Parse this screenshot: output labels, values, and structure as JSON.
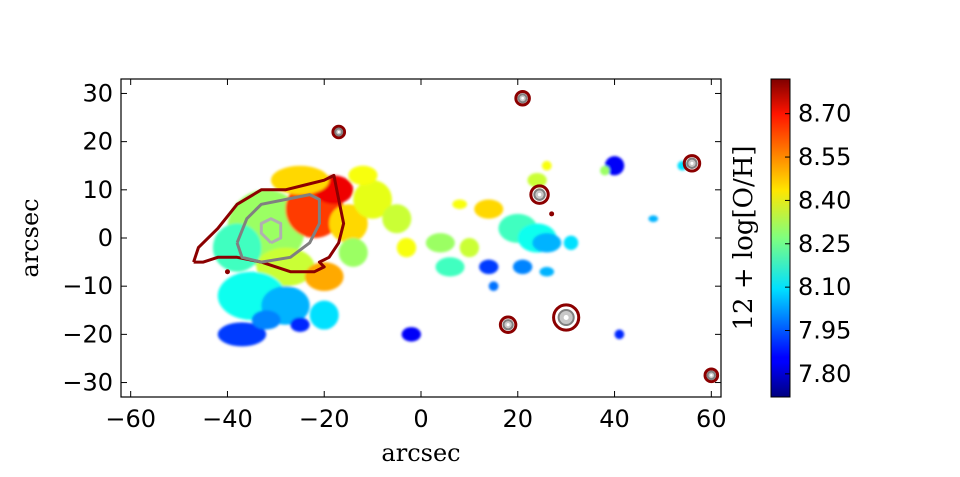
{
  "chart_data": {
    "type": "heatmap",
    "title": "",
    "xlabel": "arcsec",
    "ylabel": "arcsec",
    "xlim": [
      -62,
      62
    ],
    "ylim": [
      -33,
      33
    ],
    "xticks": [
      "−60",
      "−40",
      "−20",
      "0",
      "20",
      "40",
      "60"
    ],
    "xtick_values": [
      -60,
      -40,
      -20,
      0,
      20,
      40,
      60
    ],
    "yticks": [
      "30",
      "20",
      "10",
      "0",
      "−10",
      "−20",
      "−30"
    ],
    "ytick_values": [
      30,
      20,
      10,
      0,
      -10,
      -20,
      -30
    ],
    "grid": false,
    "colormap": "jet",
    "colorbar": {
      "label": "12 + log[O/H]",
      "vmin": 7.72,
      "vmax": 8.82,
      "ticks": [
        "8.70",
        "8.55",
        "8.40",
        "8.25",
        "8.10",
        "7.95",
        "7.80"
      ],
      "tick_values": [
        8.7,
        8.55,
        8.4,
        8.25,
        8.1,
        7.95,
        7.8
      ]
    },
    "regions": [
      {
        "x": -32,
        "y": 2,
        "rx": 8,
        "ry": 8,
        "value": 8.3
      },
      {
        "x": -22,
        "y": 6,
        "rx": 6,
        "ry": 6,
        "value": 8.62
      },
      {
        "x": -18,
        "y": 10,
        "rx": 4,
        "ry": 3,
        "value": 8.7
      },
      {
        "x": -25,
        "y": 12,
        "rx": 6,
        "ry": 3,
        "value": 8.45
      },
      {
        "x": -38,
        "y": -2,
        "rx": 5,
        "ry": 5,
        "value": 8.2
      },
      {
        "x": -28,
        "y": -6,
        "rx": 6,
        "ry": 4,
        "value": 8.35
      },
      {
        "x": -20,
        "y": -8,
        "rx": 4,
        "ry": 3,
        "value": 8.5
      },
      {
        "x": -15,
        "y": 3,
        "rx": 4,
        "ry": 4,
        "value": 8.45
      },
      {
        "x": -10,
        "y": 8,
        "rx": 4,
        "ry": 4,
        "value": 8.38
      },
      {
        "x": -12,
        "y": 13,
        "rx": 3,
        "ry": 2,
        "value": 8.4
      },
      {
        "x": -14,
        "y": -3,
        "rx": 3,
        "ry": 3,
        "value": 8.3
      },
      {
        "x": -35,
        "y": -12,
        "rx": 7,
        "ry": 5,
        "value": 8.15
      },
      {
        "x": -28,
        "y": -14,
        "rx": 5,
        "ry": 4,
        "value": 8.05
      },
      {
        "x": -37,
        "y": -20,
        "rx": 5,
        "ry": 2.5,
        "value": 7.92
      },
      {
        "x": -32,
        "y": -17,
        "rx": 3,
        "ry": 2,
        "value": 8.0
      },
      {
        "x": -20,
        "y": -16,
        "rx": 3,
        "ry": 3,
        "value": 8.1
      },
      {
        "x": -25,
        "y": -18,
        "rx": 2,
        "ry": 1.5,
        "value": 7.9
      },
      {
        "x": -5,
        "y": 3,
        "rx": 2,
        "ry": 2,
        "value": 8.3
      },
      {
        "x": -5,
        "y": 4,
        "rx": 3,
        "ry": 3,
        "value": 8.35
      },
      {
        "x": -3,
        "y": -2,
        "rx": 2,
        "ry": 2,
        "value": 8.4
      },
      {
        "x": -2,
        "y": -20,
        "rx": 2,
        "ry": 1.5,
        "value": 7.85
      },
      {
        "x": 4,
        "y": -1,
        "rx": 3,
        "ry": 2,
        "value": 8.3
      },
      {
        "x": 6,
        "y": -6,
        "rx": 3,
        "ry": 2,
        "value": 8.2
      },
      {
        "x": 10,
        "y": -2,
        "rx": 2,
        "ry": 2,
        "value": 8.35
      },
      {
        "x": 8,
        "y": 7,
        "rx": 1.5,
        "ry": 1,
        "value": 8.4
      },
      {
        "x": 14,
        "y": 6,
        "rx": 3,
        "ry": 2,
        "value": 8.45
      },
      {
        "x": 14,
        "y": -6,
        "rx": 2,
        "ry": 1.5,
        "value": 7.92
      },
      {
        "x": 15,
        "y": -10,
        "rx": 1,
        "ry": 1,
        "value": 7.98
      },
      {
        "x": 20,
        "y": 2,
        "rx": 4,
        "ry": 3,
        "value": 8.2
      },
      {
        "x": 24,
        "y": 0,
        "rx": 4,
        "ry": 3,
        "value": 8.15
      },
      {
        "x": 26,
        "y": -1,
        "rx": 3,
        "ry": 2,
        "value": 8.05
      },
      {
        "x": 21,
        "y": -6,
        "rx": 2,
        "ry": 1.5,
        "value": 8.0
      },
      {
        "x": 26,
        "y": -7,
        "rx": 1.5,
        "ry": 1,
        "value": 8.05
      },
      {
        "x": 31,
        "y": -1,
        "rx": 1.5,
        "ry": 1.5,
        "value": 8.1
      },
      {
        "x": 24,
        "y": 12,
        "rx": 2,
        "ry": 1.5,
        "value": 8.35
      },
      {
        "x": 26,
        "y": 15,
        "rx": 1,
        "ry": 1,
        "value": 8.4
      },
      {
        "x": 40,
        "y": 15,
        "rx": 2,
        "ry": 2,
        "value": 7.85
      },
      {
        "x": 38,
        "y": 14,
        "rx": 1,
        "ry": 1,
        "value": 8.3
      },
      {
        "x": 41,
        "y": -20,
        "rx": 1,
        "ry": 1,
        "value": 7.9
      },
      {
        "x": 48,
        "y": 4,
        "rx": 1,
        "ry": 0.7,
        "value": 8.05
      },
      {
        "x": 54,
        "y": 15,
        "rx": 1,
        "ry": 1,
        "value": 8.1
      }
    ],
    "contours": [
      {
        "color": "#8b0000",
        "points": [
          [
            -47,
            -5
          ],
          [
            -46,
            -2
          ],
          [
            -42,
            2
          ],
          [
            -38,
            7
          ],
          [
            -33,
            10
          ],
          [
            -28,
            10
          ],
          [
            -24,
            11
          ],
          [
            -20,
            12
          ],
          [
            -18,
            13
          ],
          [
            -17,
            8
          ],
          [
            -16,
            3
          ],
          [
            -17,
            -1
          ],
          [
            -19,
            -4
          ],
          [
            -21,
            -5
          ],
          [
            -20,
            -6
          ],
          [
            -22,
            -7
          ],
          [
            -27,
            -7
          ],
          [
            -33,
            -5
          ],
          [
            -38,
            -4
          ],
          [
            -42,
            -4
          ],
          [
            -45,
            -5
          ],
          [
            -47,
            -5
          ]
        ]
      },
      {
        "color": "#808080",
        "points": [
          [
            -38,
            -1
          ],
          [
            -36,
            4
          ],
          [
            -33,
            7
          ],
          [
            -28,
            8
          ],
          [
            -23,
            9
          ],
          [
            -21,
            8
          ],
          [
            -21,
            3
          ],
          [
            -23,
            -1
          ],
          [
            -27,
            -4
          ],
          [
            -33,
            -5
          ],
          [
            -37,
            -4
          ],
          [
            -38,
            -1
          ]
        ]
      },
      {
        "color": "#b0b0b0",
        "points": [
          [
            -31,
            -1
          ],
          [
            -33,
            1
          ],
          [
            -33,
            3
          ],
          [
            -31,
            4
          ],
          [
            -29,
            3
          ],
          [
            -29,
            0
          ],
          [
            -31,
            -1
          ]
        ]
      }
    ],
    "markers": [
      {
        "x": -17,
        "y": 22,
        "r": 1.2
      },
      {
        "x": 21,
        "y": 29,
        "r": 1.4
      },
      {
        "x": 24.5,
        "y": 9,
        "r": 1.8
      },
      {
        "x": 56,
        "y": 15.5,
        "r": 1.6
      },
      {
        "x": 18,
        "y": -18,
        "r": 1.6
      },
      {
        "x": 30,
        "y": -16.5,
        "r": 2.6
      },
      {
        "x": 60,
        "y": -28.5,
        "r": 1.3
      }
    ],
    "dots": [
      {
        "x": -40,
        "y": -7
      },
      {
        "x": 27,
        "y": 5
      }
    ]
  }
}
